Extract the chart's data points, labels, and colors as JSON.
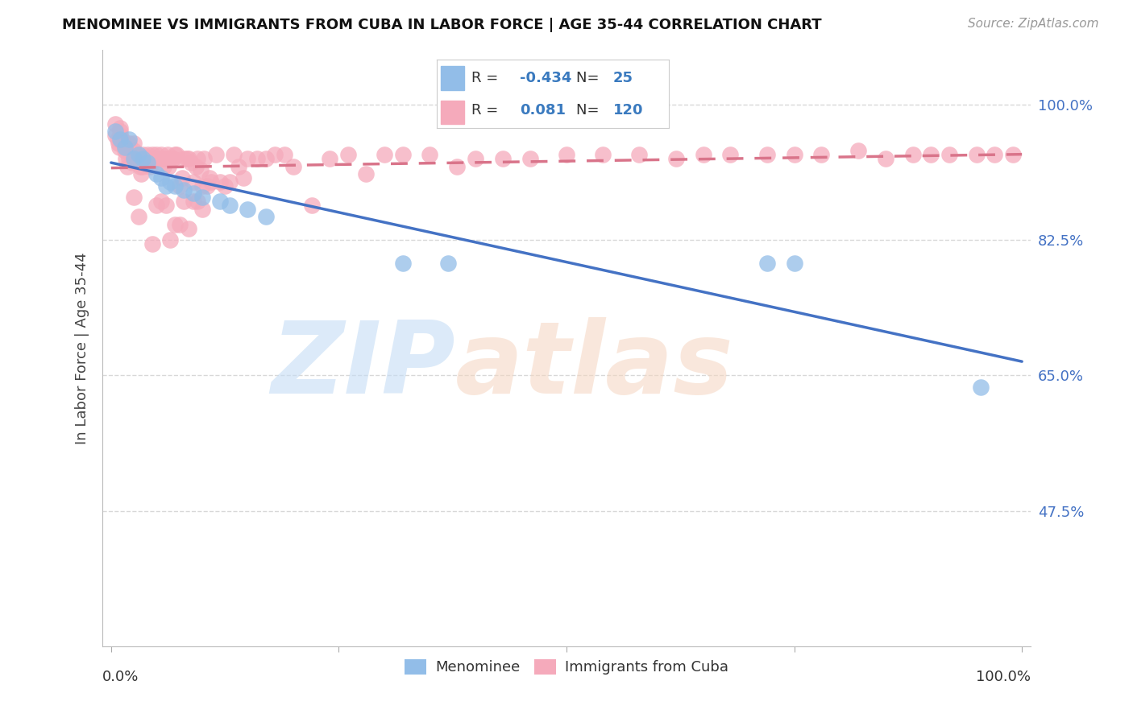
{
  "title": "MENOMINEE VS IMMIGRANTS FROM CUBA IN LABOR FORCE | AGE 35-44 CORRELATION CHART",
  "source": "Source: ZipAtlas.com",
  "ylabel": "In Labor Force | Age 35-44",
  "ytick_vals": [
    1.0,
    0.825,
    0.65,
    0.475
  ],
  "ytick_labels": [
    "100.0%",
    "82.5%",
    "65.0%",
    "47.5%"
  ],
  "legend_R_menominee": "-0.434",
  "legend_N_menominee": "25",
  "legend_R_cuba": "0.081",
  "legend_N_cuba": "120",
  "menominee_color": "#92bde8",
  "cuba_color": "#f5aabb",
  "menominee_line_color": "#4472c4",
  "cuba_line_color": "#d9748a",
  "background_color": "#ffffff",
  "grid_color": "#d8d8d8",
  "xlim": [
    -0.01,
    1.01
  ],
  "ylim": [
    0.3,
    1.07
  ],
  "figsize": [
    14.06,
    8.92
  ],
  "dpi": 100,
  "menominee_x": [
    0.005,
    0.01,
    0.015,
    0.02,
    0.025,
    0.03,
    0.035,
    0.04,
    0.05,
    0.055,
    0.06,
    0.065,
    0.07,
    0.08,
    0.09,
    0.1,
    0.12,
    0.13,
    0.15,
    0.17,
    0.32,
    0.37,
    0.72,
    0.75,
    0.955
  ],
  "menominee_y": [
    0.965,
    0.955,
    0.945,
    0.955,
    0.93,
    0.935,
    0.93,
    0.925,
    0.91,
    0.905,
    0.895,
    0.9,
    0.895,
    0.89,
    0.885,
    0.88,
    0.875,
    0.87,
    0.865,
    0.855,
    0.795,
    0.795,
    0.795,
    0.795,
    0.635
  ],
  "cuba_x": [
    0.005,
    0.005,
    0.007,
    0.008,
    0.009,
    0.01,
    0.01,
    0.01,
    0.012,
    0.013,
    0.015,
    0.015,
    0.016,
    0.018,
    0.02,
    0.02,
    0.022,
    0.023,
    0.025,
    0.025,
    0.027,
    0.028,
    0.03,
    0.03,
    0.032,
    0.033,
    0.035,
    0.035,
    0.038,
    0.04,
    0.04,
    0.042,
    0.043,
    0.045,
    0.046,
    0.048,
    0.05,
    0.05,
    0.052,
    0.055,
    0.057,
    0.058,
    0.06,
    0.062,
    0.063,
    0.065,
    0.067,
    0.068,
    0.07,
    0.072,
    0.075,
    0.078,
    0.08,
    0.083,
    0.085,
    0.088,
    0.09,
    0.093,
    0.095,
    0.098,
    0.1,
    0.102,
    0.105,
    0.108,
    0.11,
    0.115,
    0.12,
    0.125,
    0.13,
    0.135,
    0.14,
    0.145,
    0.15,
    0.16,
    0.17,
    0.18,
    0.19,
    0.2,
    0.22,
    0.24,
    0.26,
    0.28,
    0.3,
    0.32,
    0.35,
    0.38,
    0.4,
    0.43,
    0.46,
    0.5,
    0.54,
    0.58,
    0.62,
    0.65,
    0.68,
    0.72,
    0.75,
    0.78,
    0.82,
    0.85,
    0.88,
    0.9,
    0.92,
    0.95,
    0.97,
    0.99,
    0.025,
    0.03,
    0.045,
    0.05,
    0.055,
    0.06,
    0.065,
    0.07,
    0.075,
    0.08,
    0.085,
    0.09,
    0.095,
    0.1
  ],
  "cuba_y": [
    0.975,
    0.96,
    0.955,
    0.95,
    0.945,
    0.97,
    0.965,
    0.96,
    0.955,
    0.95,
    0.945,
    0.94,
    0.93,
    0.92,
    0.93,
    0.95,
    0.935,
    0.925,
    0.95,
    0.94,
    0.93,
    0.935,
    0.925,
    0.93,
    0.92,
    0.91,
    0.935,
    0.92,
    0.93,
    0.935,
    0.93,
    0.925,
    0.92,
    0.935,
    0.93,
    0.93,
    0.93,
    0.935,
    0.93,
    0.935,
    0.93,
    0.92,
    0.93,
    0.935,
    0.92,
    0.93,
    0.93,
    0.93,
    0.935,
    0.935,
    0.895,
    0.905,
    0.93,
    0.93,
    0.93,
    0.925,
    0.9,
    0.92,
    0.93,
    0.915,
    0.895,
    0.93,
    0.895,
    0.905,
    0.9,
    0.935,
    0.9,
    0.895,
    0.9,
    0.935,
    0.92,
    0.905,
    0.93,
    0.93,
    0.93,
    0.935,
    0.935,
    0.92,
    0.87,
    0.93,
    0.935,
    0.91,
    0.935,
    0.935,
    0.935,
    0.92,
    0.93,
    0.93,
    0.93,
    0.935,
    0.935,
    0.935,
    0.93,
    0.935,
    0.935,
    0.935,
    0.935,
    0.935,
    0.94,
    0.93,
    0.935,
    0.935,
    0.935,
    0.935,
    0.935,
    0.935,
    0.88,
    0.855,
    0.82,
    0.87,
    0.875,
    0.87,
    0.825,
    0.845,
    0.845,
    0.875,
    0.84,
    0.875,
    0.875,
    0.865
  ]
}
